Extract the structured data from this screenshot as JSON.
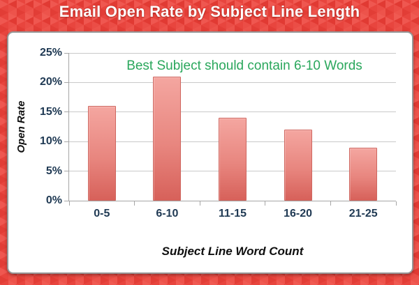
{
  "header": {
    "title": "Email Open Rate by Subject Line Length"
  },
  "chart_data": {
    "type": "bar",
    "title": "Email Open Rate by Subject Line Length",
    "categories": [
      "0-5",
      "6-10",
      "11-15",
      "16-20",
      "21-25"
    ],
    "values": [
      16,
      21,
      14,
      12,
      9
    ],
    "xlabel": "Subject Line Word Count",
    "ylabel": "Open Rate",
    "ylim": [
      0,
      25
    ],
    "ytick_step": 5,
    "ytick_labels": [
      "0%",
      "5%",
      "10%",
      "15%",
      "20%",
      "25%"
    ],
    "annotation": "Best Subject should contain 6-10 Words",
    "grid": true,
    "legend": false,
    "colors": {
      "background_red": "#e8453e",
      "triangle_shades": [
        "#ef5750",
        "#e13a33",
        "#eb4d46",
        "#e23d36",
        "#f05a52",
        "#ed534b"
      ],
      "card_white": "#ffffff",
      "title_text": "#ffffff",
      "bar_top": "#f4a6a0",
      "bar_mid": "#e8867f",
      "bar_bottom": "#d7615a",
      "bar_border": "#cf6760",
      "annotation_green": "#2aa75c",
      "tick_label_navy": "#203a54",
      "gridline_gray": "#c9c9c9",
      "axis_gray": "#a6a6a6"
    }
  }
}
